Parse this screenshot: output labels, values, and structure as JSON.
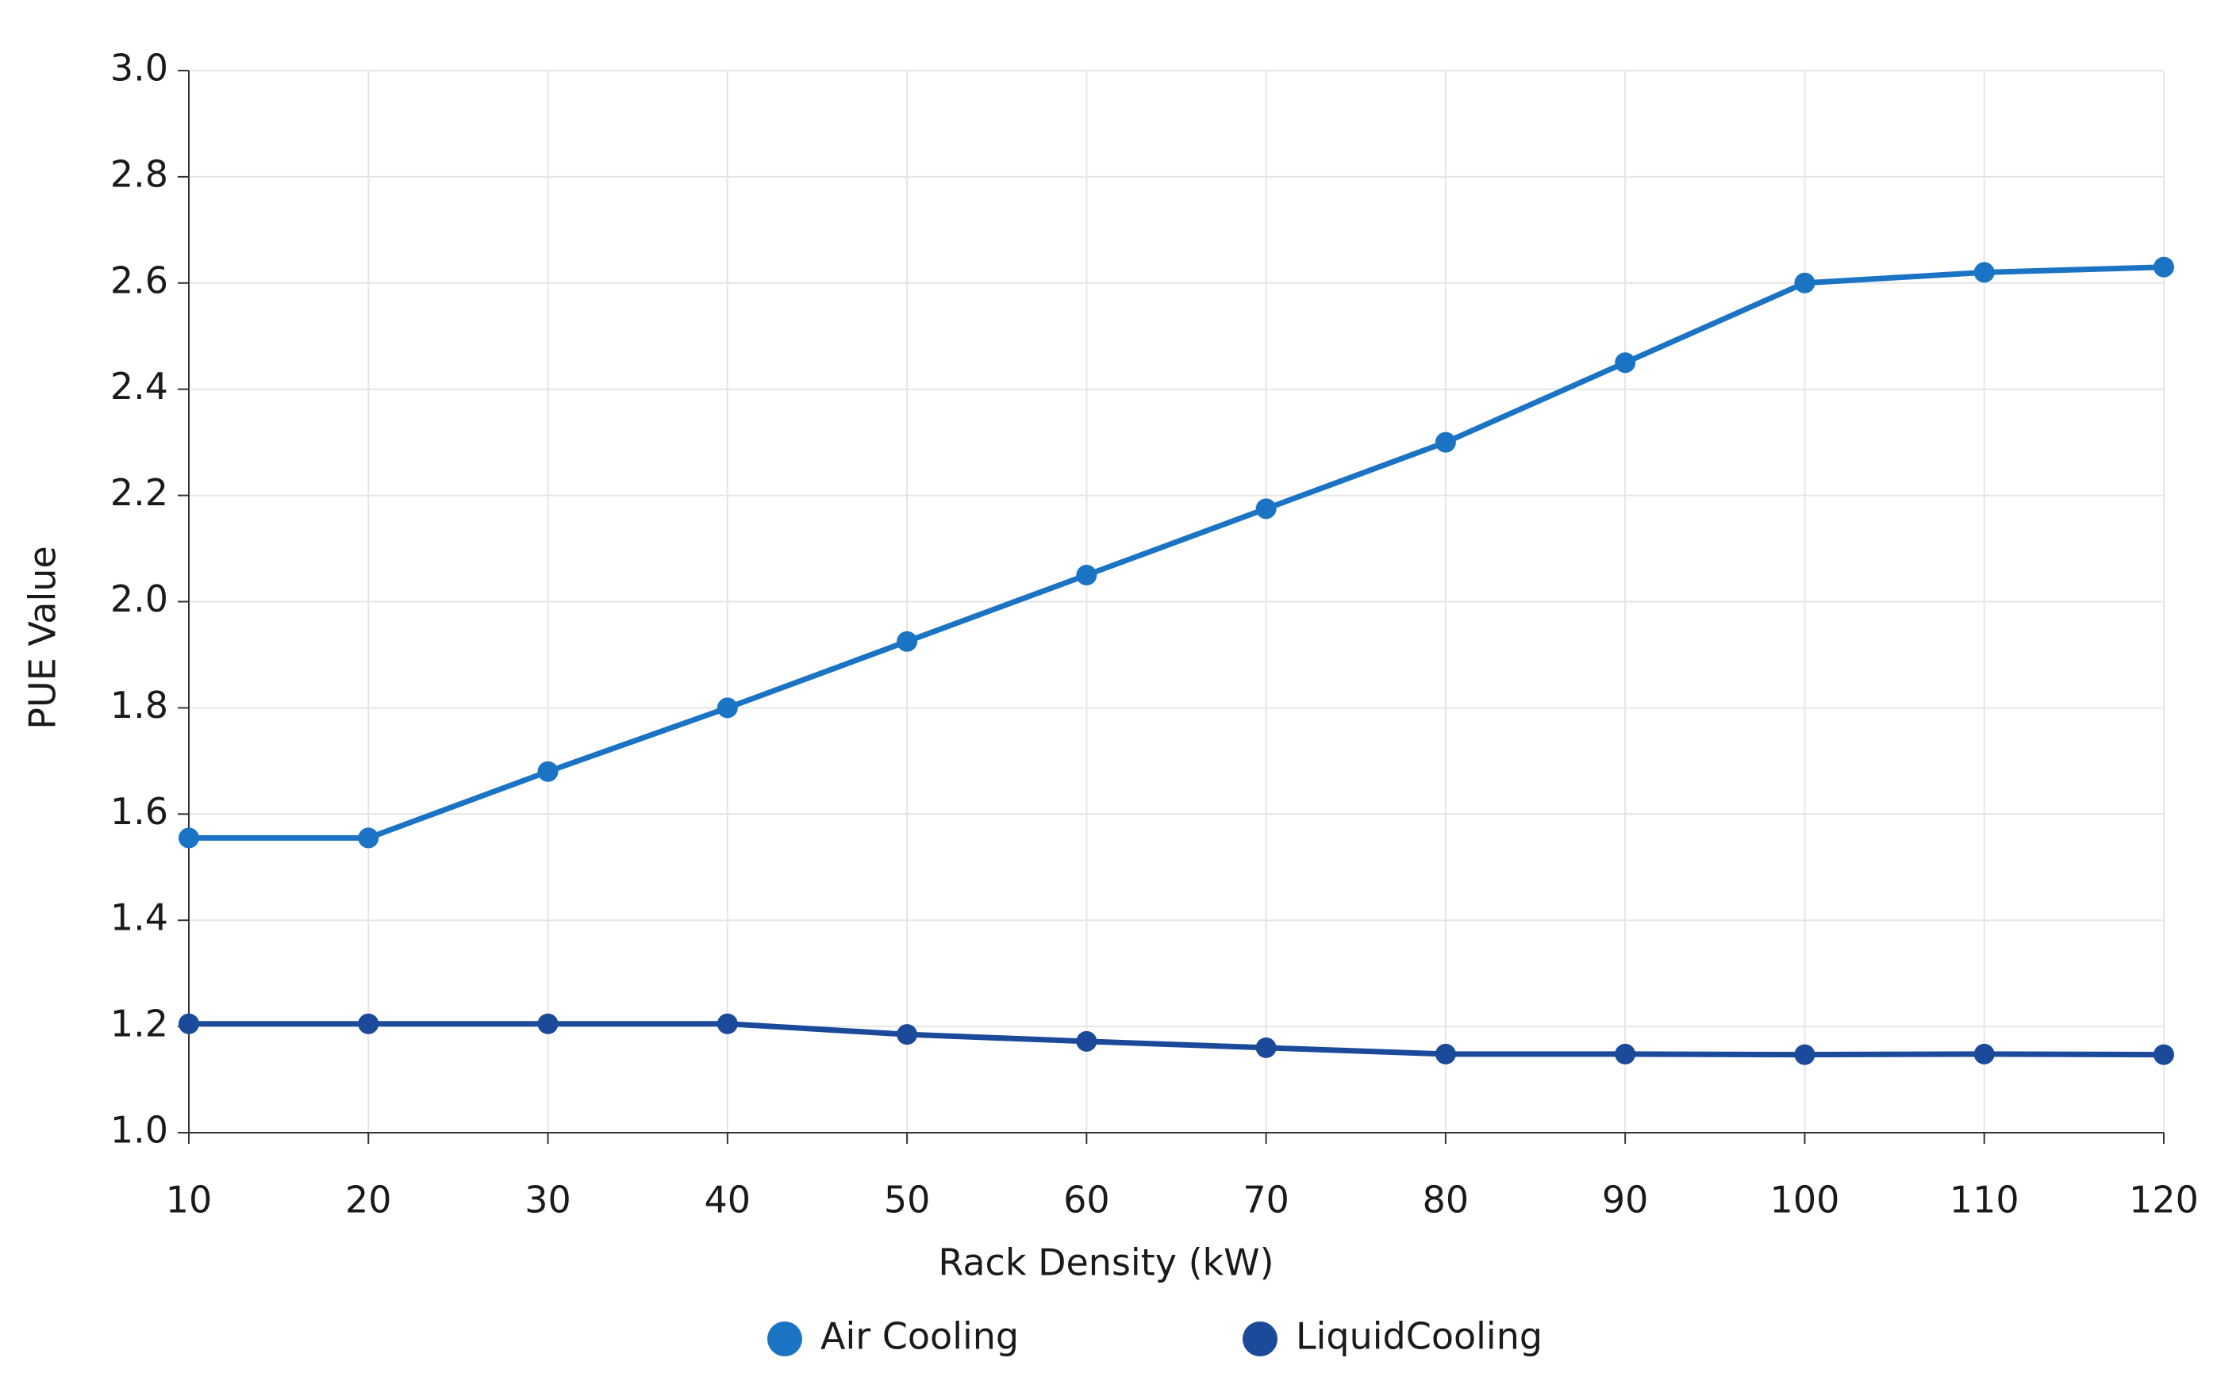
{
  "chart_data": {
    "type": "line",
    "x_label": "Rack Density (kW)",
    "y_label": "PUE Value",
    "x": [
      10,
      20,
      30,
      40,
      50,
      60,
      70,
      80,
      90,
      100,
      110,
      120
    ],
    "series": [
      {
        "name": "Air Cooling",
        "color": "#1b74c3",
        "values": [
          1.555,
          1.555,
          1.68,
          1.8,
          1.925,
          2.05,
          2.175,
          2.3,
          2.45,
          2.6,
          2.62,
          2.63
        ]
      },
      {
        "name": "LiquidCooling",
        "color": "#1b4a9b",
        "values": [
          1.205,
          1.205,
          1.205,
          1.205,
          1.185,
          1.172,
          1.16,
          1.148,
          1.148,
          1.147,
          1.148,
          1.147
        ]
      }
    ],
    "xlim": [
      10,
      120
    ],
    "xticks": [
      10,
      20,
      30,
      40,
      50,
      60,
      70,
      80,
      90,
      100,
      110,
      120
    ],
    "ylim": [
      1,
      3
    ],
    "yticks": [
      {
        "value": 1,
        "label": "1.0"
      },
      1.2,
      1.4,
      1.6,
      1.8,
      {
        "value": 2,
        "label": "2.0"
      },
      2.2,
      2.4,
      2.6,
      2.8,
      {
        "value": 3,
        "label": "3.0"
      }
    ],
    "grid": true,
    "legend": "bottom"
  }
}
